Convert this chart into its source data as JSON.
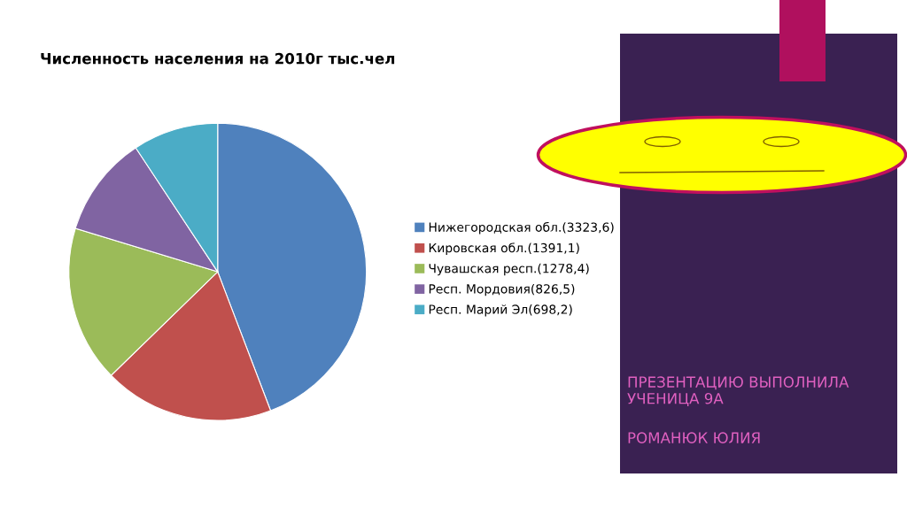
{
  "chart_data": {
    "type": "pie",
    "title": "Численность населения на 2010г тыс.чел",
    "categories": [
      "Нижегородская обл.(3323,6)",
      "Кировская обл.(1391,1)",
      "Чувашская респ.(1278,4)",
      "Респ. Мордовия(826,5)",
      "Респ. Марий Эл(698,2)"
    ],
    "values": [
      3323.6,
      1391.1,
      1278.4,
      826.5,
      698.2
    ],
    "colors": [
      "#4f81bd",
      "#c0504d",
      "#9bbb59",
      "#8064a2",
      "#4bacc6"
    ],
    "legend": "right",
    "annotations": [
      "ПРЕЗЕНТАЦИЮ ВЫПОЛНИЛА УЧЕНИЦА 9А",
      "РОМАНЮК ЮЛИЯ"
    ]
  }
}
